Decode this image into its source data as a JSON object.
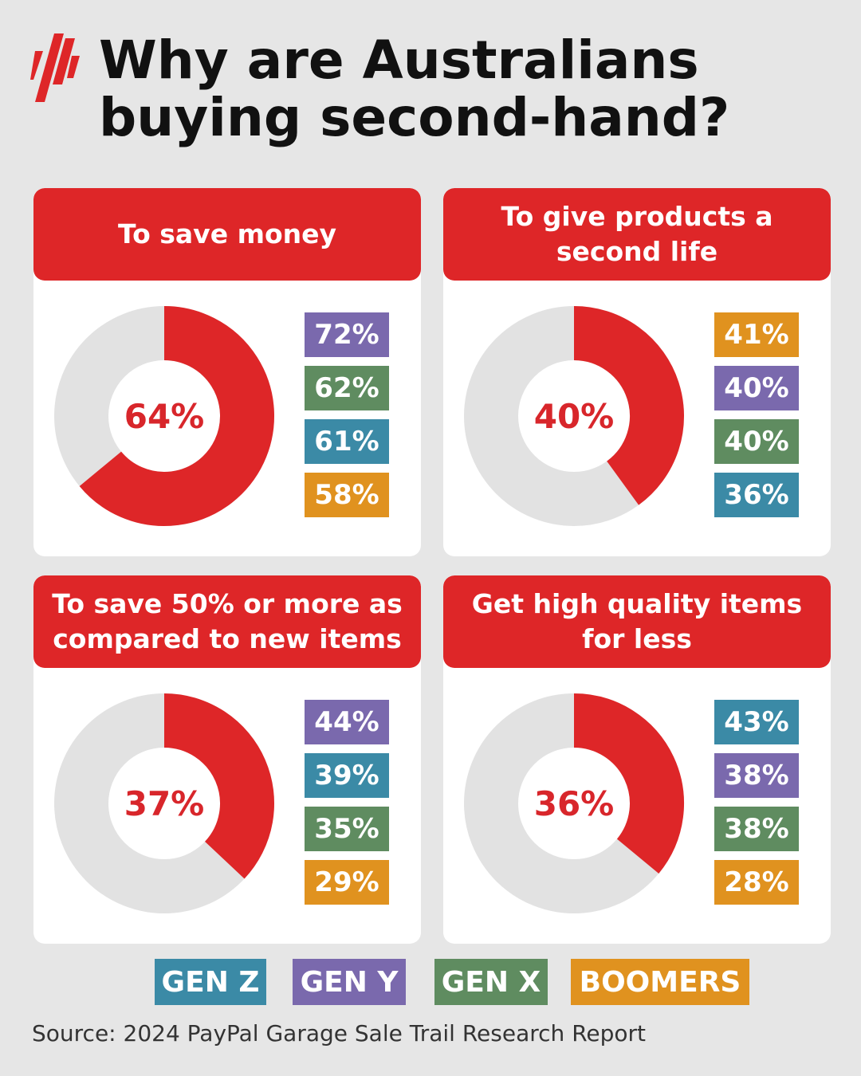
{
  "title": "Why are Australians buying second-hand?",
  "logo": {
    "icon": "sbs-logo-icon",
    "color": "#de2628"
  },
  "colors": {
    "accent": "#de2628",
    "track": "#e2e2e2",
    "gen_z": "#3b8aa6",
    "gen_y": "#7a69ad",
    "gen_x": "#5f8c60",
    "boomers": "#e0921f"
  },
  "legend": [
    {
      "label": "GEN Z",
      "color": "#3b8aa6"
    },
    {
      "label": "GEN Y",
      "color": "#7a69ad"
    },
    {
      "label": "GEN X",
      "color": "#5f8c60"
    },
    {
      "label": "BOOMERS",
      "color": "#e0921f"
    }
  ],
  "chart_data": [
    {
      "type": "pie",
      "title": "To save money",
      "value": 64,
      "value_label": "64%",
      "breakdown": [
        {
          "generation": "GEN Y",
          "value": 72,
          "label": "72%"
        },
        {
          "generation": "GEN X",
          "value": 62,
          "label": "62%"
        },
        {
          "generation": "GEN Z",
          "value": 61,
          "label": "61%"
        },
        {
          "generation": "BOOMERS",
          "value": 58,
          "label": "58%"
        }
      ]
    },
    {
      "type": "pie",
      "title": "To give products a second life",
      "value": 40,
      "value_label": "40%",
      "breakdown": [
        {
          "generation": "BOOMERS",
          "value": 41,
          "label": "41%"
        },
        {
          "generation": "GEN Y",
          "value": 40,
          "label": "40%"
        },
        {
          "generation": "GEN X",
          "value": 40,
          "label": "40%"
        },
        {
          "generation": "GEN Z",
          "value": 36,
          "label": "36%"
        }
      ]
    },
    {
      "type": "pie",
      "title": "To save 50% or more as compared to new items",
      "value": 37,
      "value_label": "37%",
      "breakdown": [
        {
          "generation": "GEN Y",
          "value": 44,
          "label": "44%"
        },
        {
          "generation": "GEN Z",
          "value": 39,
          "label": "39%"
        },
        {
          "generation": "GEN X",
          "value": 35,
          "label": "35%"
        },
        {
          "generation": "BOOMERS",
          "value": 29,
          "label": "29%"
        }
      ]
    },
    {
      "type": "pie",
      "title": "Get high quality items for less",
      "value": 36,
      "value_label": "36%",
      "breakdown": [
        {
          "generation": "GEN Z",
          "value": 43,
          "label": "43%"
        },
        {
          "generation": "GEN Y",
          "value": 38,
          "label": "38%"
        },
        {
          "generation": "GEN X",
          "value": 38,
          "label": "38%"
        },
        {
          "generation": "BOOMERS",
          "value": 28,
          "label": "28%"
        }
      ]
    }
  ],
  "source": "Source: 2024 PayPal Garage Sale Trail Research Report"
}
